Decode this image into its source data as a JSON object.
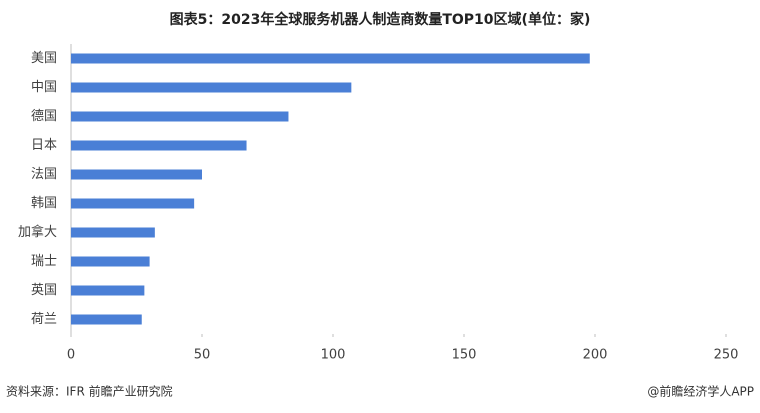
{
  "chart_data": {
    "type": "hbar",
    "title": "图表5：2023年全球服务机器人制造商数量TOP10区域(单位：家)",
    "categories": [
      "美国",
      "中国",
      "德国",
      "日本",
      "法国",
      "韩国",
      "加拿大",
      "瑞士",
      "英国",
      "荷兰"
    ],
    "values": [
      198,
      107,
      83,
      67,
      50,
      47,
      32,
      30,
      28,
      27
    ],
    "color": "#4a7fd6",
    "xlim": [
      0,
      250
    ],
    "xticks": [
      0,
      50,
      100,
      150,
      200,
      250
    ],
    "grid": false
  },
  "footer": {
    "source": "资料来源：IFR 前瞻产业研究院",
    "credit": "@前瞻经济学人APP"
  }
}
